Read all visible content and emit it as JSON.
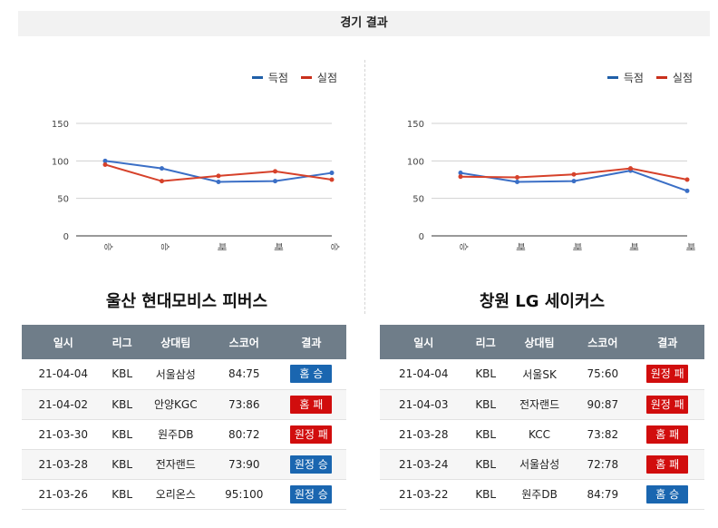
{
  "header": {
    "title": "경기 결과"
  },
  "colors": {
    "scored": "#3b6fc6",
    "conceded": "#d6412a",
    "win": "#1a66b0",
    "loss": "#d10d0d"
  },
  "columns": [
    "일시",
    "리그",
    "상대팀",
    "스코어",
    "결과"
  ],
  "legend": {
    "scored": "득점",
    "conceded": "실점"
  },
  "panels": [
    {
      "team": "울산 현대모비스 피버스",
      "chart_data": {
        "type": "line",
        "categories": [
          "승",
          "승",
          "패",
          "패",
          "승"
        ],
        "series": [
          {
            "name": "득점",
            "values": [
              100,
              90,
              72,
              73,
              84
            ]
          },
          {
            "name": "실점",
            "values": [
              95,
              73,
              80,
              86,
              75
            ]
          }
        ],
        "yticks": [
          0,
          50,
          100,
          150
        ],
        "ylim": [
          0,
          150
        ],
        "grid": true,
        "legend": "top-right"
      },
      "rows": [
        {
          "date": "21-04-04",
          "league": "KBL",
          "opponent": "서울삼성",
          "score": "84:75",
          "result": "홈 승",
          "outcome": "win"
        },
        {
          "date": "21-04-02",
          "league": "KBL",
          "opponent": "안양KGC",
          "score": "73:86",
          "result": "홈 패",
          "outcome": "loss"
        },
        {
          "date": "21-03-30",
          "league": "KBL",
          "opponent": "원주DB",
          "score": "80:72",
          "result": "원정 패",
          "outcome": "loss"
        },
        {
          "date": "21-03-28",
          "league": "KBL",
          "opponent": "전자랜드",
          "score": "73:90",
          "result": "원정 승",
          "outcome": "win"
        },
        {
          "date": "21-03-26",
          "league": "KBL",
          "opponent": "오리온스",
          "score": "95:100",
          "result": "원정 승",
          "outcome": "win"
        }
      ]
    },
    {
      "team": "창원 LG 세이커스",
      "chart_data": {
        "type": "line",
        "categories": [
          "승",
          "패",
          "패",
          "패",
          "패"
        ],
        "series": [
          {
            "name": "득점",
            "values": [
              84,
              72,
              73,
              87,
              60
            ]
          },
          {
            "name": "실점",
            "values": [
              79,
              78,
              82,
              90,
              75
            ]
          }
        ],
        "yticks": [
          0,
          50,
          100,
          150
        ],
        "ylim": [
          0,
          150
        ],
        "grid": true,
        "legend": "top-right"
      },
      "rows": [
        {
          "date": "21-04-04",
          "league": "KBL",
          "opponent": "서울SK",
          "score": "75:60",
          "result": "원정 패",
          "outcome": "loss"
        },
        {
          "date": "21-04-03",
          "league": "KBL",
          "opponent": "전자랜드",
          "score": "90:87",
          "result": "원정 패",
          "outcome": "loss"
        },
        {
          "date": "21-03-28",
          "league": "KBL",
          "opponent": "KCC",
          "score": "73:82",
          "result": "홈 패",
          "outcome": "loss"
        },
        {
          "date": "21-03-24",
          "league": "KBL",
          "opponent": "서울삼성",
          "score": "72:78",
          "result": "홈 패",
          "outcome": "loss"
        },
        {
          "date": "21-03-22",
          "league": "KBL",
          "opponent": "원주DB",
          "score": "84:79",
          "result": "홈 승",
          "outcome": "win"
        }
      ]
    }
  ]
}
